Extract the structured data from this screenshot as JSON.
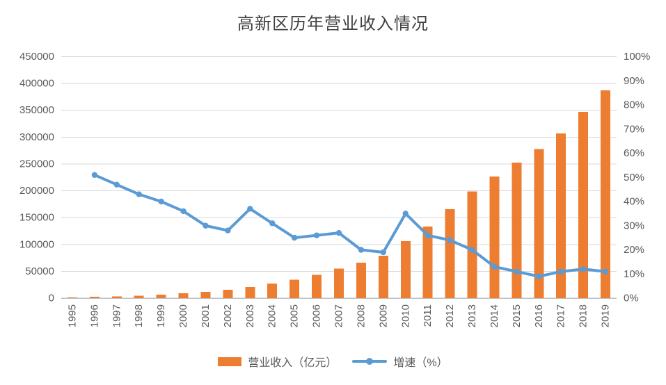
{
  "chart_data": {
    "type": "combo-bar-line",
    "title": "高新区历年营业收入情况",
    "categories": [
      "1995",
      "1996",
      "1997",
      "1998",
      "1999",
      "2000",
      "2001",
      "2002",
      "2003",
      "2004",
      "2005",
      "2006",
      "2007",
      "2008",
      "2009",
      "2010",
      "2011",
      "2012",
      "2013",
      "2014",
      "2015",
      "2016",
      "2017",
      "2018",
      "2019"
    ],
    "series": [
      {
        "name": "营业收入（亿元）",
        "type": "bar",
        "axis": "left",
        "color": "#ED7D31",
        "values": [
          1521,
          2300,
          3388,
          4839,
          6775,
          9209,
          11928,
          15326,
          20939,
          27466,
          34416,
          43320,
          54925,
          65986,
          78707,
          105917,
          133340,
          165697,
          198902,
          226744,
          252749,
          278000,
          307000,
          347000,
          387000
        ]
      },
      {
        "name": "增速（%）",
        "type": "line",
        "axis": "right",
        "color": "#5B9BD5",
        "values": [
          null,
          51,
          47,
          43,
          40,
          36,
          30,
          28,
          37,
          31,
          25,
          26,
          27,
          20,
          19,
          35,
          26,
          24,
          20,
          13,
          11,
          9,
          11,
          12,
          11
        ]
      }
    ],
    "axes": {
      "left": {
        "min": 0,
        "max": 450000,
        "step": 50000,
        "tick_labels": [
          "0",
          "50000",
          "100000",
          "150000",
          "200000",
          "250000",
          "300000",
          "350000",
          "400000",
          "450000"
        ]
      },
      "right": {
        "min": 0,
        "max": 100,
        "step": 10,
        "tick_labels": [
          "0%",
          "10%",
          "20%",
          "30%",
          "40%",
          "50%",
          "60%",
          "70%",
          "80%",
          "90%",
          "100%"
        ]
      }
    },
    "grid": "horizontal, follows left axis",
    "legend_position": "bottom",
    "colors": {
      "bar": "#ED7D31",
      "line": "#5B9BD5",
      "grid": "#D9D9D9",
      "axis_line": "#BFBFBF",
      "tick_text": "#595959",
      "title_text": "#404040"
    }
  }
}
